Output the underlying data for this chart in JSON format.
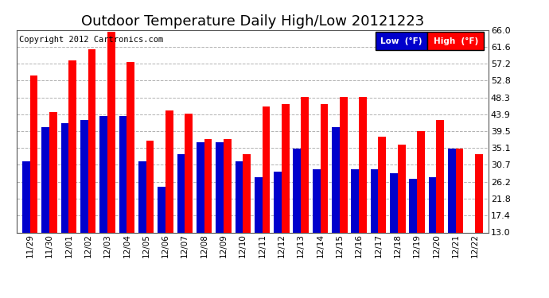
{
  "title": "Outdoor Temperature Daily High/Low 20121223",
  "copyright": "Copyright 2012 Cartronics.com",
  "legend_low": "Low  (°F)",
  "legend_high": "High  (°F)",
  "dates": [
    "11/29",
    "11/30",
    "12/01",
    "12/02",
    "12/03",
    "12/04",
    "12/05",
    "12/06",
    "12/07",
    "12/08",
    "12/09",
    "12/10",
    "12/11",
    "12/12",
    "12/13",
    "12/14",
    "12/15",
    "12/16",
    "12/17",
    "12/18",
    "12/19",
    "12/20",
    "12/21",
    "12/22"
  ],
  "highs": [
    54.0,
    44.5,
    58.0,
    61.0,
    65.5,
    57.5,
    37.0,
    45.0,
    44.0,
    37.5,
    37.5,
    33.5,
    46.0,
    46.5,
    48.5,
    46.5,
    48.5,
    48.5,
    38.0,
    36.0,
    39.5,
    42.5,
    35.0,
    33.5
  ],
  "lows": [
    31.5,
    40.5,
    41.5,
    42.5,
    43.5,
    43.5,
    31.5,
    25.0,
    33.5,
    36.5,
    36.5,
    31.5,
    27.5,
    29.0,
    35.0,
    29.5,
    40.5,
    29.5,
    29.5,
    28.5,
    27.0,
    27.5,
    35.0,
    13.0
  ],
  "bar_color_high": "#ff0000",
  "bar_color_low": "#0000cc",
  "bg_color": "#ffffff",
  "grid_color": "#aaaaaa",
  "yticks": [
    13.0,
    17.4,
    21.8,
    26.2,
    30.7,
    35.1,
    39.5,
    43.9,
    48.3,
    52.8,
    57.2,
    61.6,
    66.0
  ],
  "ymin": 13.0,
  "ymax": 66.0,
  "title_fontsize": 13,
  "copyright_fontsize": 7.5
}
